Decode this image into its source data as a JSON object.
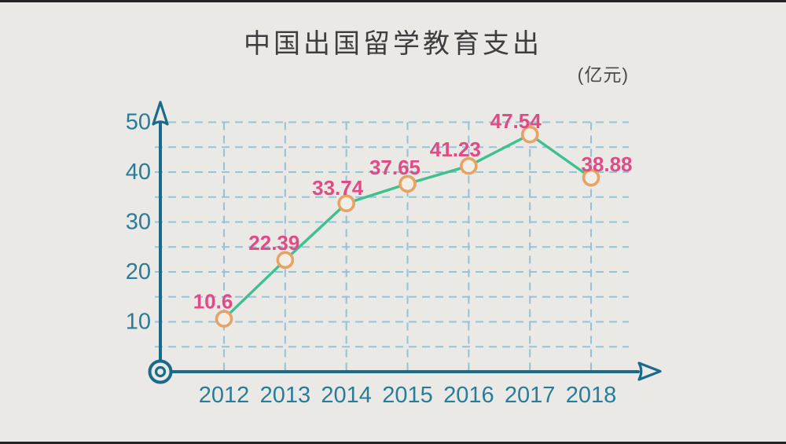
{
  "frame": {
    "bar_color": "#242424"
  },
  "chart_data": {
    "type": "line",
    "title": "中国出国留学教育支出",
    "unit_label": "(亿元)",
    "xlabel": "",
    "ylabel": "",
    "categories": [
      "2012",
      "2013",
      "2014",
      "2015",
      "2016",
      "2017",
      "2018"
    ],
    "series": [
      {
        "values": [
          10.6,
          22.39,
          33.74,
          37.65,
          41.23,
          47.54,
          38.88
        ]
      }
    ],
    "ylim": [
      0,
      50
    ],
    "ytick_values": [
      10,
      20,
      30,
      40,
      50
    ],
    "grid_interval": 5,
    "grid": "dashed",
    "legend": "none",
    "marker": "open-circle",
    "colors": {
      "line": "#3ec08f",
      "marker_stroke": "#e8a263",
      "marker_fill": "#f1eee8",
      "point_label": "#e04b86",
      "axis": "#1a6b89",
      "tick_label": "#2a7c99",
      "grid": "#96c3d6",
      "title": "#3e3e3e",
      "unit": "#4a4a4a",
      "background": "#eae9e6"
    }
  }
}
